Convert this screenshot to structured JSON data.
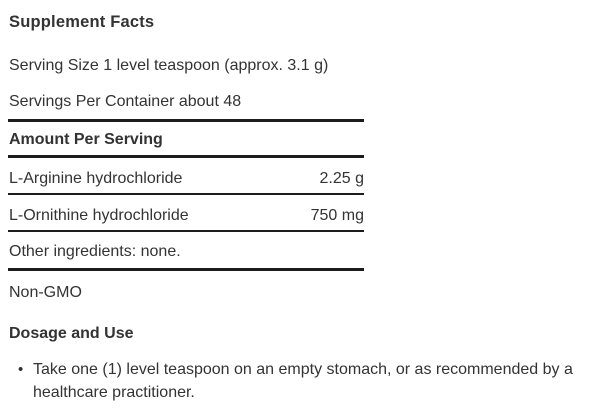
{
  "supplement_facts": {
    "title": "Supplement Facts",
    "serving_size": "Serving Size 1 level teaspoon (approx. 3.1 g)",
    "servings_per_container": "Servings Per Container about 48",
    "amount_per_serving": "Amount Per Serving",
    "ingredients": [
      {
        "name": "L-Arginine hydrochloride",
        "amount": "2.25 g"
      },
      {
        "name": "L-Ornithine hydrochloride",
        "amount": "750 mg"
      }
    ],
    "other_ingredients": "Other ingredients: none.",
    "certification": "Non-GMO"
  },
  "dosage": {
    "title": "Dosage and Use",
    "bullet": "•",
    "instructions": [
      "Take one (1) level teaspoon on an empty stomach, or as recommended by a healthcare practitioner."
    ]
  },
  "colors": {
    "text": "#333333",
    "rule": "#1c1c1c",
    "background": "#ffffff"
  }
}
